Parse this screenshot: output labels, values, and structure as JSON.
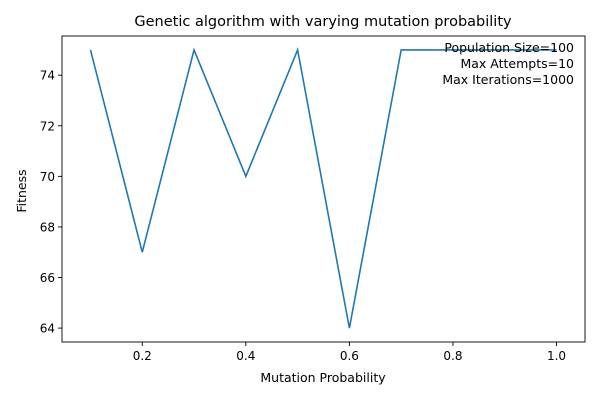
{
  "chart_data": {
    "type": "line",
    "title": "Genetic algorithm with varying mutation probability",
    "xlabel": "Mutation Probability",
    "ylabel": "Fitness",
    "xlim": [
      0.045,
      1.055
    ],
    "ylim": [
      63.45,
      75.55
    ],
    "xticks": [
      0.2,
      0.4,
      0.6,
      0.8,
      1.0
    ],
    "xtick_labels": [
      "0.2",
      "0.4",
      "0.6",
      "0.8",
      "1.0"
    ],
    "yticks": [
      64,
      66,
      68,
      70,
      72,
      74
    ],
    "ytick_labels": [
      "64",
      "66",
      "68",
      "70",
      "72",
      "74"
    ],
    "grid": false,
    "line_color": "#1f77b4",
    "x": [
      0.1,
      0.2,
      0.3,
      0.4,
      0.5,
      0.6,
      0.7,
      0.8,
      0.9,
      1.0
    ],
    "y": [
      75,
      67,
      75,
      70,
      75,
      64,
      75,
      75,
      75,
      75
    ],
    "annotations": [
      "Population Size=100",
      "Max Attempts=10",
      "Max Iterations=1000"
    ],
    "annotation_position": "top-right"
  }
}
